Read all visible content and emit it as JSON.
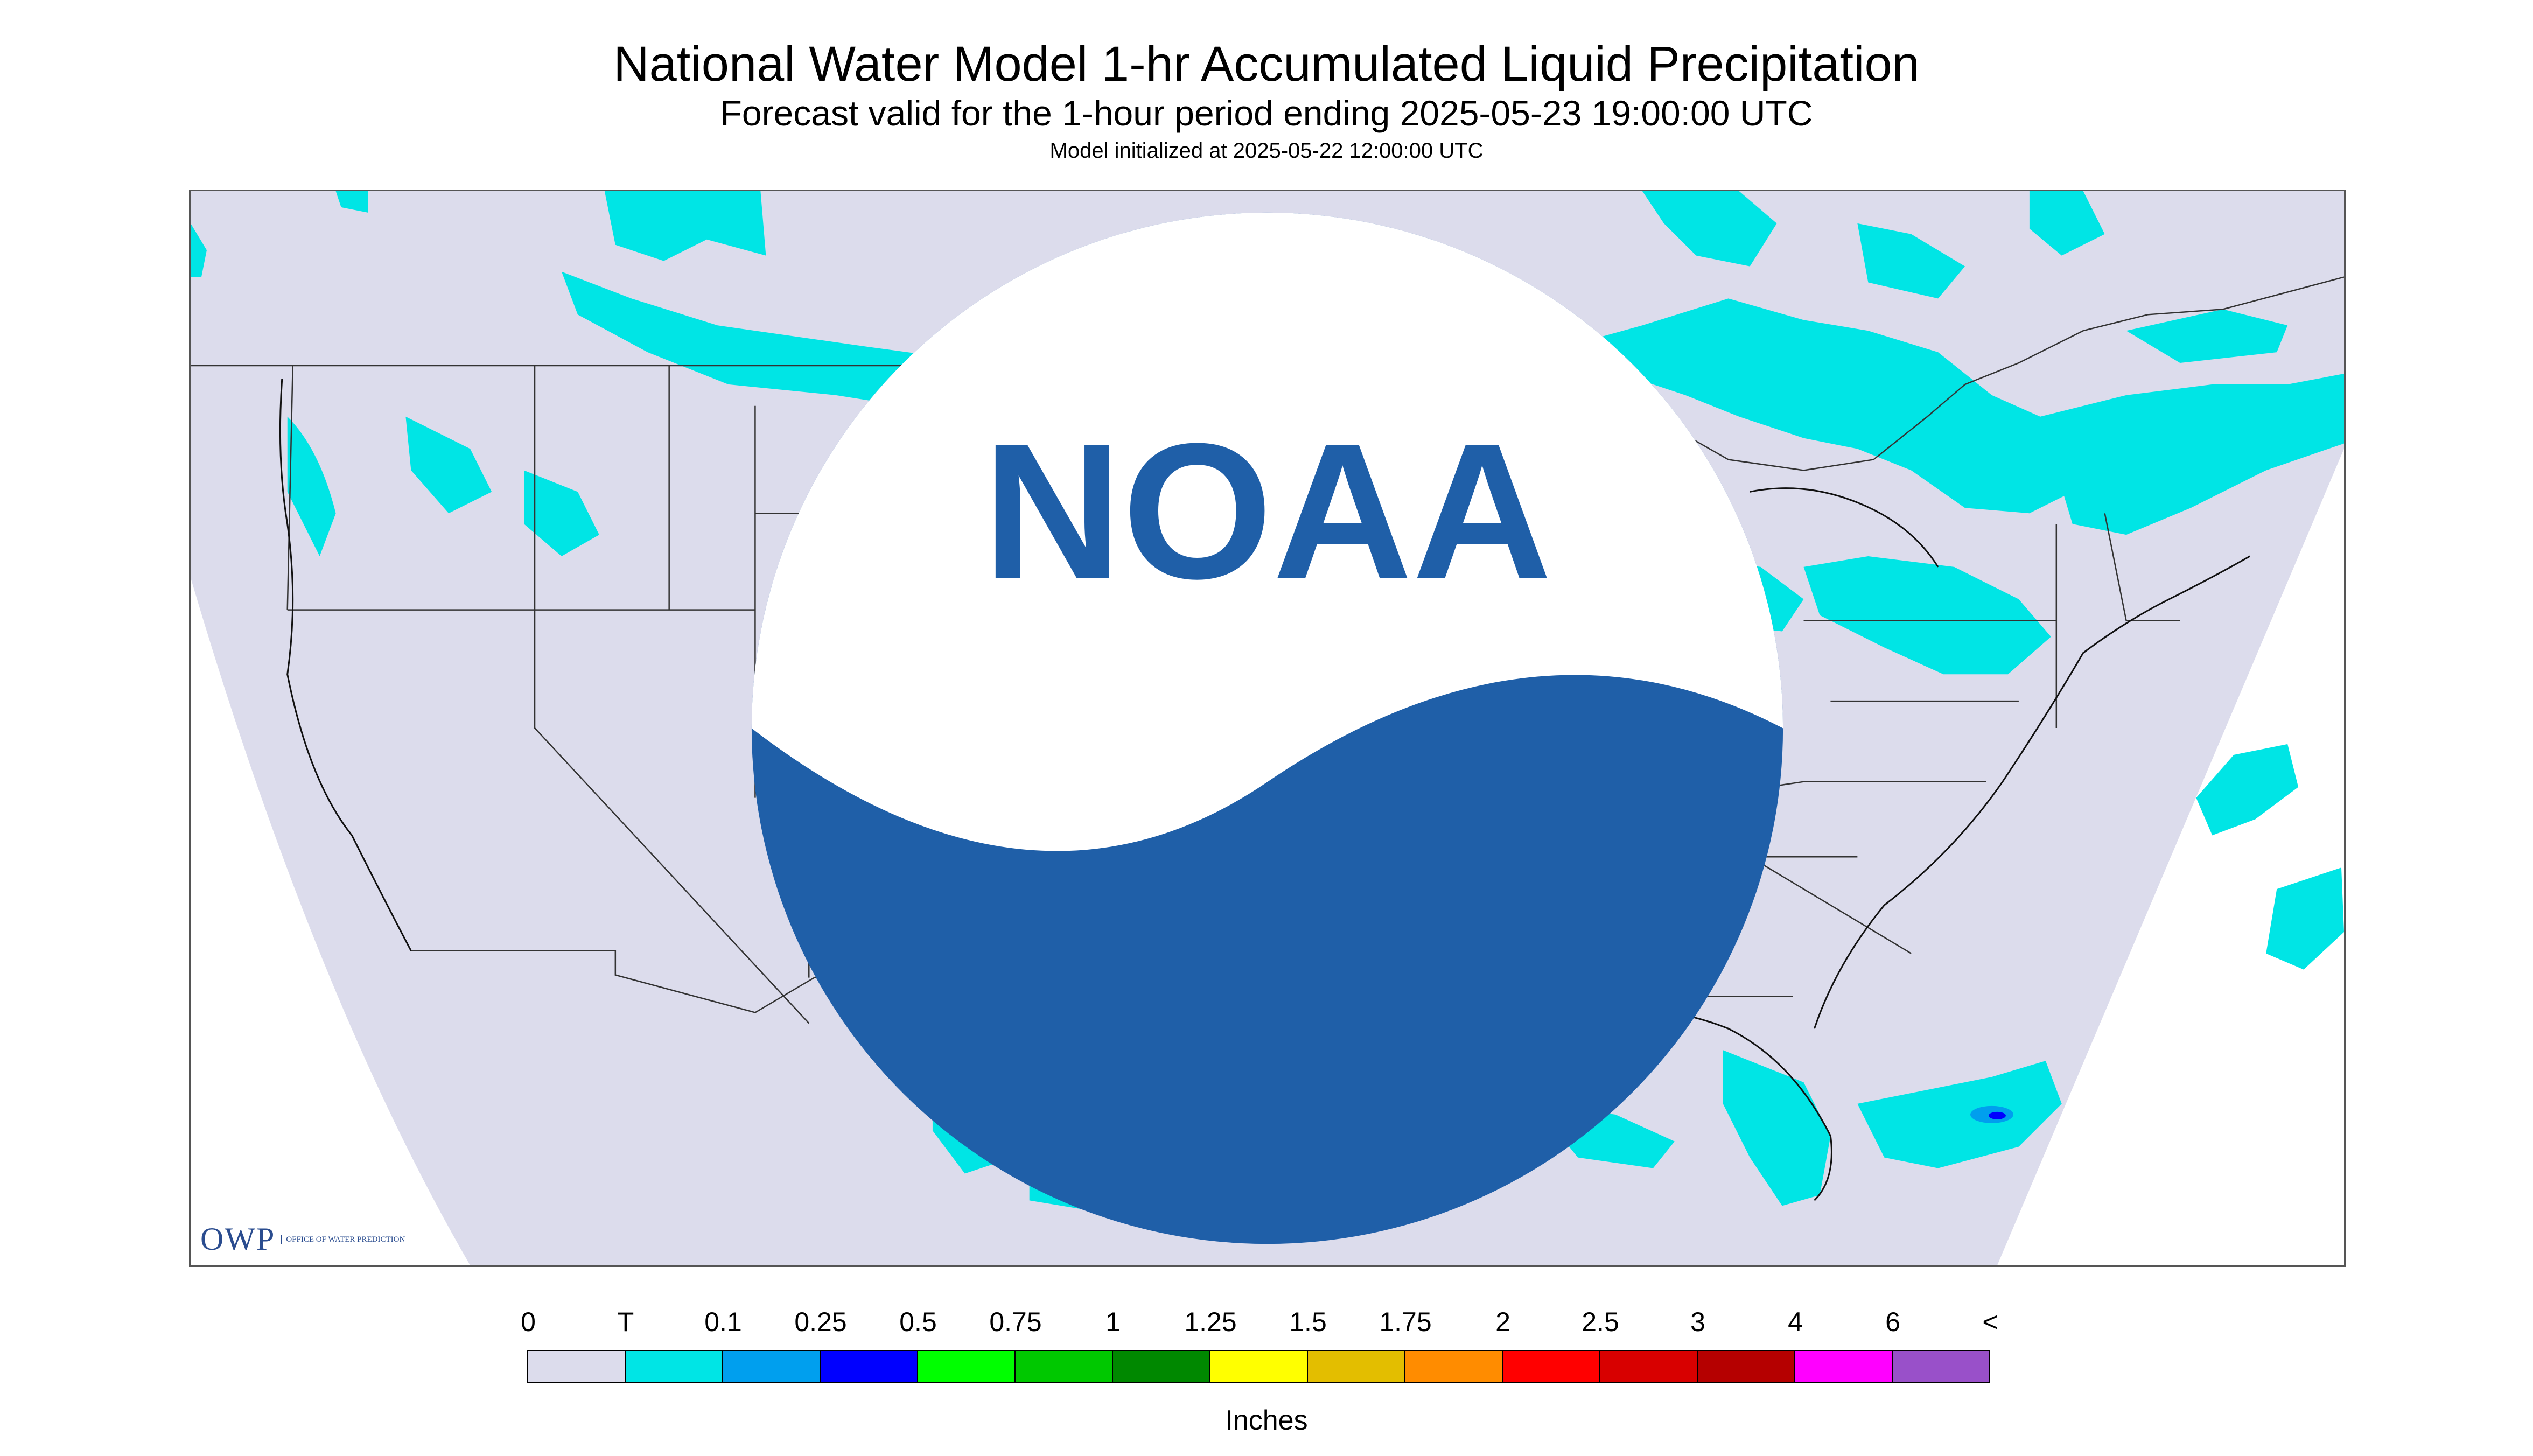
{
  "title": "National Water Model 1-hr Accumulated Liquid Precipitation",
  "subtitle": "Forecast valid for the 1-hour period ending 2025-05-23 19:00:00 UTC",
  "model_init": "Model initialized at 2025-05-22 12:00:00 UTC",
  "logos": {
    "owp": {
      "letters": "OWP",
      "text": "OFFICE OF WATER PREDICTION",
      "icon": "owp-logo"
    },
    "noaa": {
      "text": "NOAA",
      "icon": "noaa-logo"
    }
  },
  "legend": {
    "units": "Inches",
    "labels": [
      "0",
      "T",
      "0.1",
      "0.25",
      "0.5",
      "0.75",
      "1",
      "1.25",
      "1.5",
      "1.75",
      "2",
      "2.5",
      "3",
      "4",
      "6",
      "<"
    ],
    "colors": [
      "#dcdcec",
      "#00e5e5",
      "#009fee",
      "#0000ff",
      "#00ff00",
      "#00c800",
      "#008800",
      "#ffff00",
      "#e3be00",
      "#ff8c00",
      "#ff0000",
      "#d80000",
      "#b50000",
      "#ff00ff",
      "#9950c9"
    ]
  },
  "map_colors": {
    "background": "#dcdcec",
    "outside_domain": "#ffffff",
    "trace": "#00e5e5",
    "light": "#009fee",
    "moderate": "#0000ff",
    "borders": "#333333"
  }
}
